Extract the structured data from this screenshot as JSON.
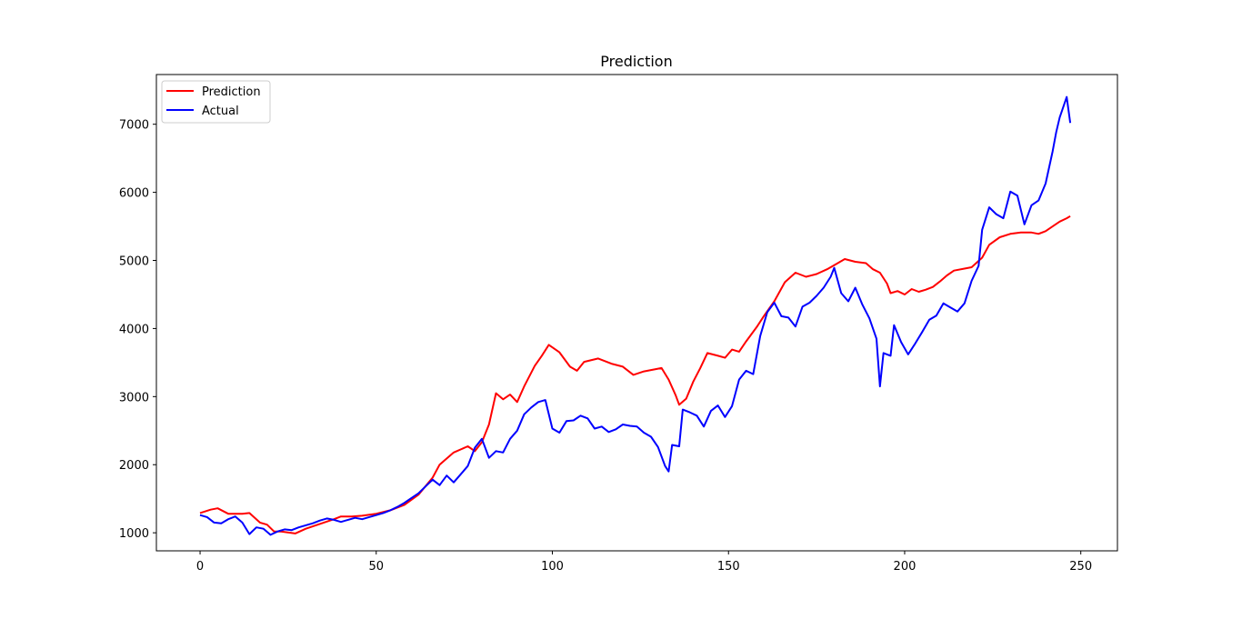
{
  "chart_data": {
    "type": "line",
    "title": "Prediction",
    "xlabel": "",
    "ylabel": "",
    "xlim": [
      -12.4,
      260.4
    ],
    "ylim": [
      735,
      7730
    ],
    "xticks": [
      0,
      50,
      100,
      150,
      200,
      250
    ],
    "yticks": [
      1000,
      2000,
      3000,
      4000,
      5000,
      6000,
      7000
    ],
    "grid": false,
    "legend_position": "top-left",
    "series": [
      {
        "name": "Prediction",
        "color": "#ff0000",
        "points": [
          [
            0,
            1290
          ],
          [
            3,
            1340
          ],
          [
            5,
            1360
          ],
          [
            8,
            1280
          ],
          [
            12,
            1280
          ],
          [
            14,
            1290
          ],
          [
            17,
            1150
          ],
          [
            19,
            1120
          ],
          [
            21,
            1020
          ],
          [
            23,
            1020
          ],
          [
            27,
            990
          ],
          [
            30,
            1060
          ],
          [
            34,
            1130
          ],
          [
            38,
            1200
          ],
          [
            40,
            1240
          ],
          [
            43,
            1240
          ],
          [
            46,
            1250
          ],
          [
            50,
            1280
          ],
          [
            54,
            1330
          ],
          [
            58,
            1410
          ],
          [
            62,
            1560
          ],
          [
            66,
            1810
          ],
          [
            68,
            2000
          ],
          [
            72,
            2180
          ],
          [
            76,
            2270
          ],
          [
            78,
            2200
          ],
          [
            80,
            2330
          ],
          [
            82,
            2590
          ],
          [
            84,
            3050
          ],
          [
            86,
            2960
          ],
          [
            88,
            3030
          ],
          [
            90,
            2920
          ],
          [
            92,
            3150
          ],
          [
            95,
            3450
          ],
          [
            97,
            3600
          ],
          [
            99,
            3760
          ],
          [
            102,
            3650
          ],
          [
            105,
            3440
          ],
          [
            107,
            3380
          ],
          [
            109,
            3510
          ],
          [
            113,
            3560
          ],
          [
            117,
            3480
          ],
          [
            120,
            3440
          ],
          [
            123,
            3320
          ],
          [
            126,
            3370
          ],
          [
            129,
            3400
          ],
          [
            131,
            3420
          ],
          [
            133,
            3250
          ],
          [
            135,
            3020
          ],
          [
            136,
            2880
          ],
          [
            138,
            2970
          ],
          [
            140,
            3220
          ],
          [
            142,
            3420
          ],
          [
            144,
            3640
          ],
          [
            147,
            3600
          ],
          [
            149,
            3570
          ],
          [
            151,
            3690
          ],
          [
            153,
            3660
          ],
          [
            155,
            3810
          ],
          [
            158,
            4020
          ],
          [
            160,
            4180
          ],
          [
            163,
            4400
          ],
          [
            166,
            4680
          ],
          [
            169,
            4820
          ],
          [
            172,
            4760
          ],
          [
            175,
            4800
          ],
          [
            178,
            4870
          ],
          [
            181,
            4960
          ],
          [
            183,
            5020
          ],
          [
            186,
            4980
          ],
          [
            189,
            4960
          ],
          [
            191,
            4870
          ],
          [
            193,
            4820
          ],
          [
            195,
            4660
          ],
          [
            196,
            4520
          ],
          [
            198,
            4550
          ],
          [
            200,
            4500
          ],
          [
            202,
            4580
          ],
          [
            204,
            4540
          ],
          [
            206,
            4570
          ],
          [
            208,
            4610
          ],
          [
            210,
            4690
          ],
          [
            212,
            4780
          ],
          [
            214,
            4850
          ],
          [
            217,
            4880
          ],
          [
            219,
            4900
          ],
          [
            222,
            5040
          ],
          [
            224,
            5230
          ],
          [
            227,
            5340
          ],
          [
            230,
            5390
          ],
          [
            233,
            5410
          ],
          [
            236,
            5410
          ],
          [
            238,
            5390
          ],
          [
            240,
            5430
          ],
          [
            242,
            5500
          ],
          [
            244,
            5570
          ],
          [
            246,
            5620
          ],
          [
            247,
            5650
          ]
        ]
      },
      {
        "name": "Actual",
        "color": "#0000ff",
        "points": [
          [
            0,
            1260
          ],
          [
            2,
            1230
          ],
          [
            4,
            1150
          ],
          [
            6,
            1140
          ],
          [
            8,
            1200
          ],
          [
            10,
            1240
          ],
          [
            12,
            1150
          ],
          [
            14,
            980
          ],
          [
            16,
            1080
          ],
          [
            18,
            1060
          ],
          [
            20,
            970
          ],
          [
            22,
            1020
          ],
          [
            24,
            1050
          ],
          [
            26,
            1040
          ],
          [
            28,
            1080
          ],
          [
            30,
            1110
          ],
          [
            32,
            1140
          ],
          [
            34,
            1180
          ],
          [
            36,
            1210
          ],
          [
            38,
            1190
          ],
          [
            40,
            1160
          ],
          [
            42,
            1190
          ],
          [
            44,
            1220
          ],
          [
            46,
            1200
          ],
          [
            48,
            1230
          ],
          [
            50,
            1260
          ],
          [
            52,
            1290
          ],
          [
            54,
            1330
          ],
          [
            56,
            1380
          ],
          [
            58,
            1440
          ],
          [
            60,
            1510
          ],
          [
            62,
            1580
          ],
          [
            64,
            1680
          ],
          [
            66,
            1780
          ],
          [
            68,
            1700
          ],
          [
            70,
            1840
          ],
          [
            72,
            1740
          ],
          [
            74,
            1860
          ],
          [
            76,
            1980
          ],
          [
            78,
            2250
          ],
          [
            80,
            2380
          ],
          [
            82,
            2100
          ],
          [
            84,
            2200
          ],
          [
            86,
            2180
          ],
          [
            88,
            2380
          ],
          [
            90,
            2500
          ],
          [
            92,
            2740
          ],
          [
            94,
            2840
          ],
          [
            96,
            2920
          ],
          [
            98,
            2950
          ],
          [
            100,
            2530
          ],
          [
            102,
            2470
          ],
          [
            104,
            2640
          ],
          [
            106,
            2650
          ],
          [
            108,
            2720
          ],
          [
            110,
            2680
          ],
          [
            112,
            2530
          ],
          [
            114,
            2560
          ],
          [
            116,
            2480
          ],
          [
            118,
            2520
          ],
          [
            120,
            2590
          ],
          [
            122,
            2570
          ],
          [
            124,
            2560
          ],
          [
            126,
            2470
          ],
          [
            128,
            2410
          ],
          [
            130,
            2260
          ],
          [
            132,
            1980
          ],
          [
            133,
            1900
          ],
          [
            134,
            2290
          ],
          [
            136,
            2270
          ],
          [
            137,
            2810
          ],
          [
            139,
            2770
          ],
          [
            141,
            2720
          ],
          [
            143,
            2560
          ],
          [
            145,
            2790
          ],
          [
            147,
            2870
          ],
          [
            149,
            2700
          ],
          [
            151,
            2860
          ],
          [
            153,
            3250
          ],
          [
            155,
            3380
          ],
          [
            157,
            3330
          ],
          [
            159,
            3890
          ],
          [
            161,
            4240
          ],
          [
            163,
            4380
          ],
          [
            165,
            4180
          ],
          [
            167,
            4160
          ],
          [
            169,
            4030
          ],
          [
            171,
            4320
          ],
          [
            173,
            4380
          ],
          [
            175,
            4480
          ],
          [
            177,
            4600
          ],
          [
            179,
            4760
          ],
          [
            180,
            4890
          ],
          [
            182,
            4520
          ],
          [
            184,
            4400
          ],
          [
            186,
            4600
          ],
          [
            188,
            4350
          ],
          [
            190,
            4150
          ],
          [
            192,
            3850
          ],
          [
            193,
            3150
          ],
          [
            194,
            3640
          ],
          [
            196,
            3600
          ],
          [
            197,
            4050
          ],
          [
            199,
            3800
          ],
          [
            201,
            3620
          ],
          [
            203,
            3780
          ],
          [
            205,
            3950
          ],
          [
            207,
            4130
          ],
          [
            209,
            4190
          ],
          [
            211,
            4370
          ],
          [
            213,
            4310
          ],
          [
            215,
            4250
          ],
          [
            217,
            4370
          ],
          [
            219,
            4700
          ],
          [
            221,
            4920
          ],
          [
            222,
            5450
          ],
          [
            224,
            5780
          ],
          [
            226,
            5680
          ],
          [
            228,
            5620
          ],
          [
            230,
            6010
          ],
          [
            232,
            5950
          ],
          [
            234,
            5530
          ],
          [
            236,
            5810
          ],
          [
            238,
            5880
          ],
          [
            240,
            6130
          ],
          [
            242,
            6600
          ],
          [
            243,
            6880
          ],
          [
            244,
            7100
          ],
          [
            246,
            7400
          ],
          [
            247,
            7020
          ]
        ]
      }
    ]
  }
}
